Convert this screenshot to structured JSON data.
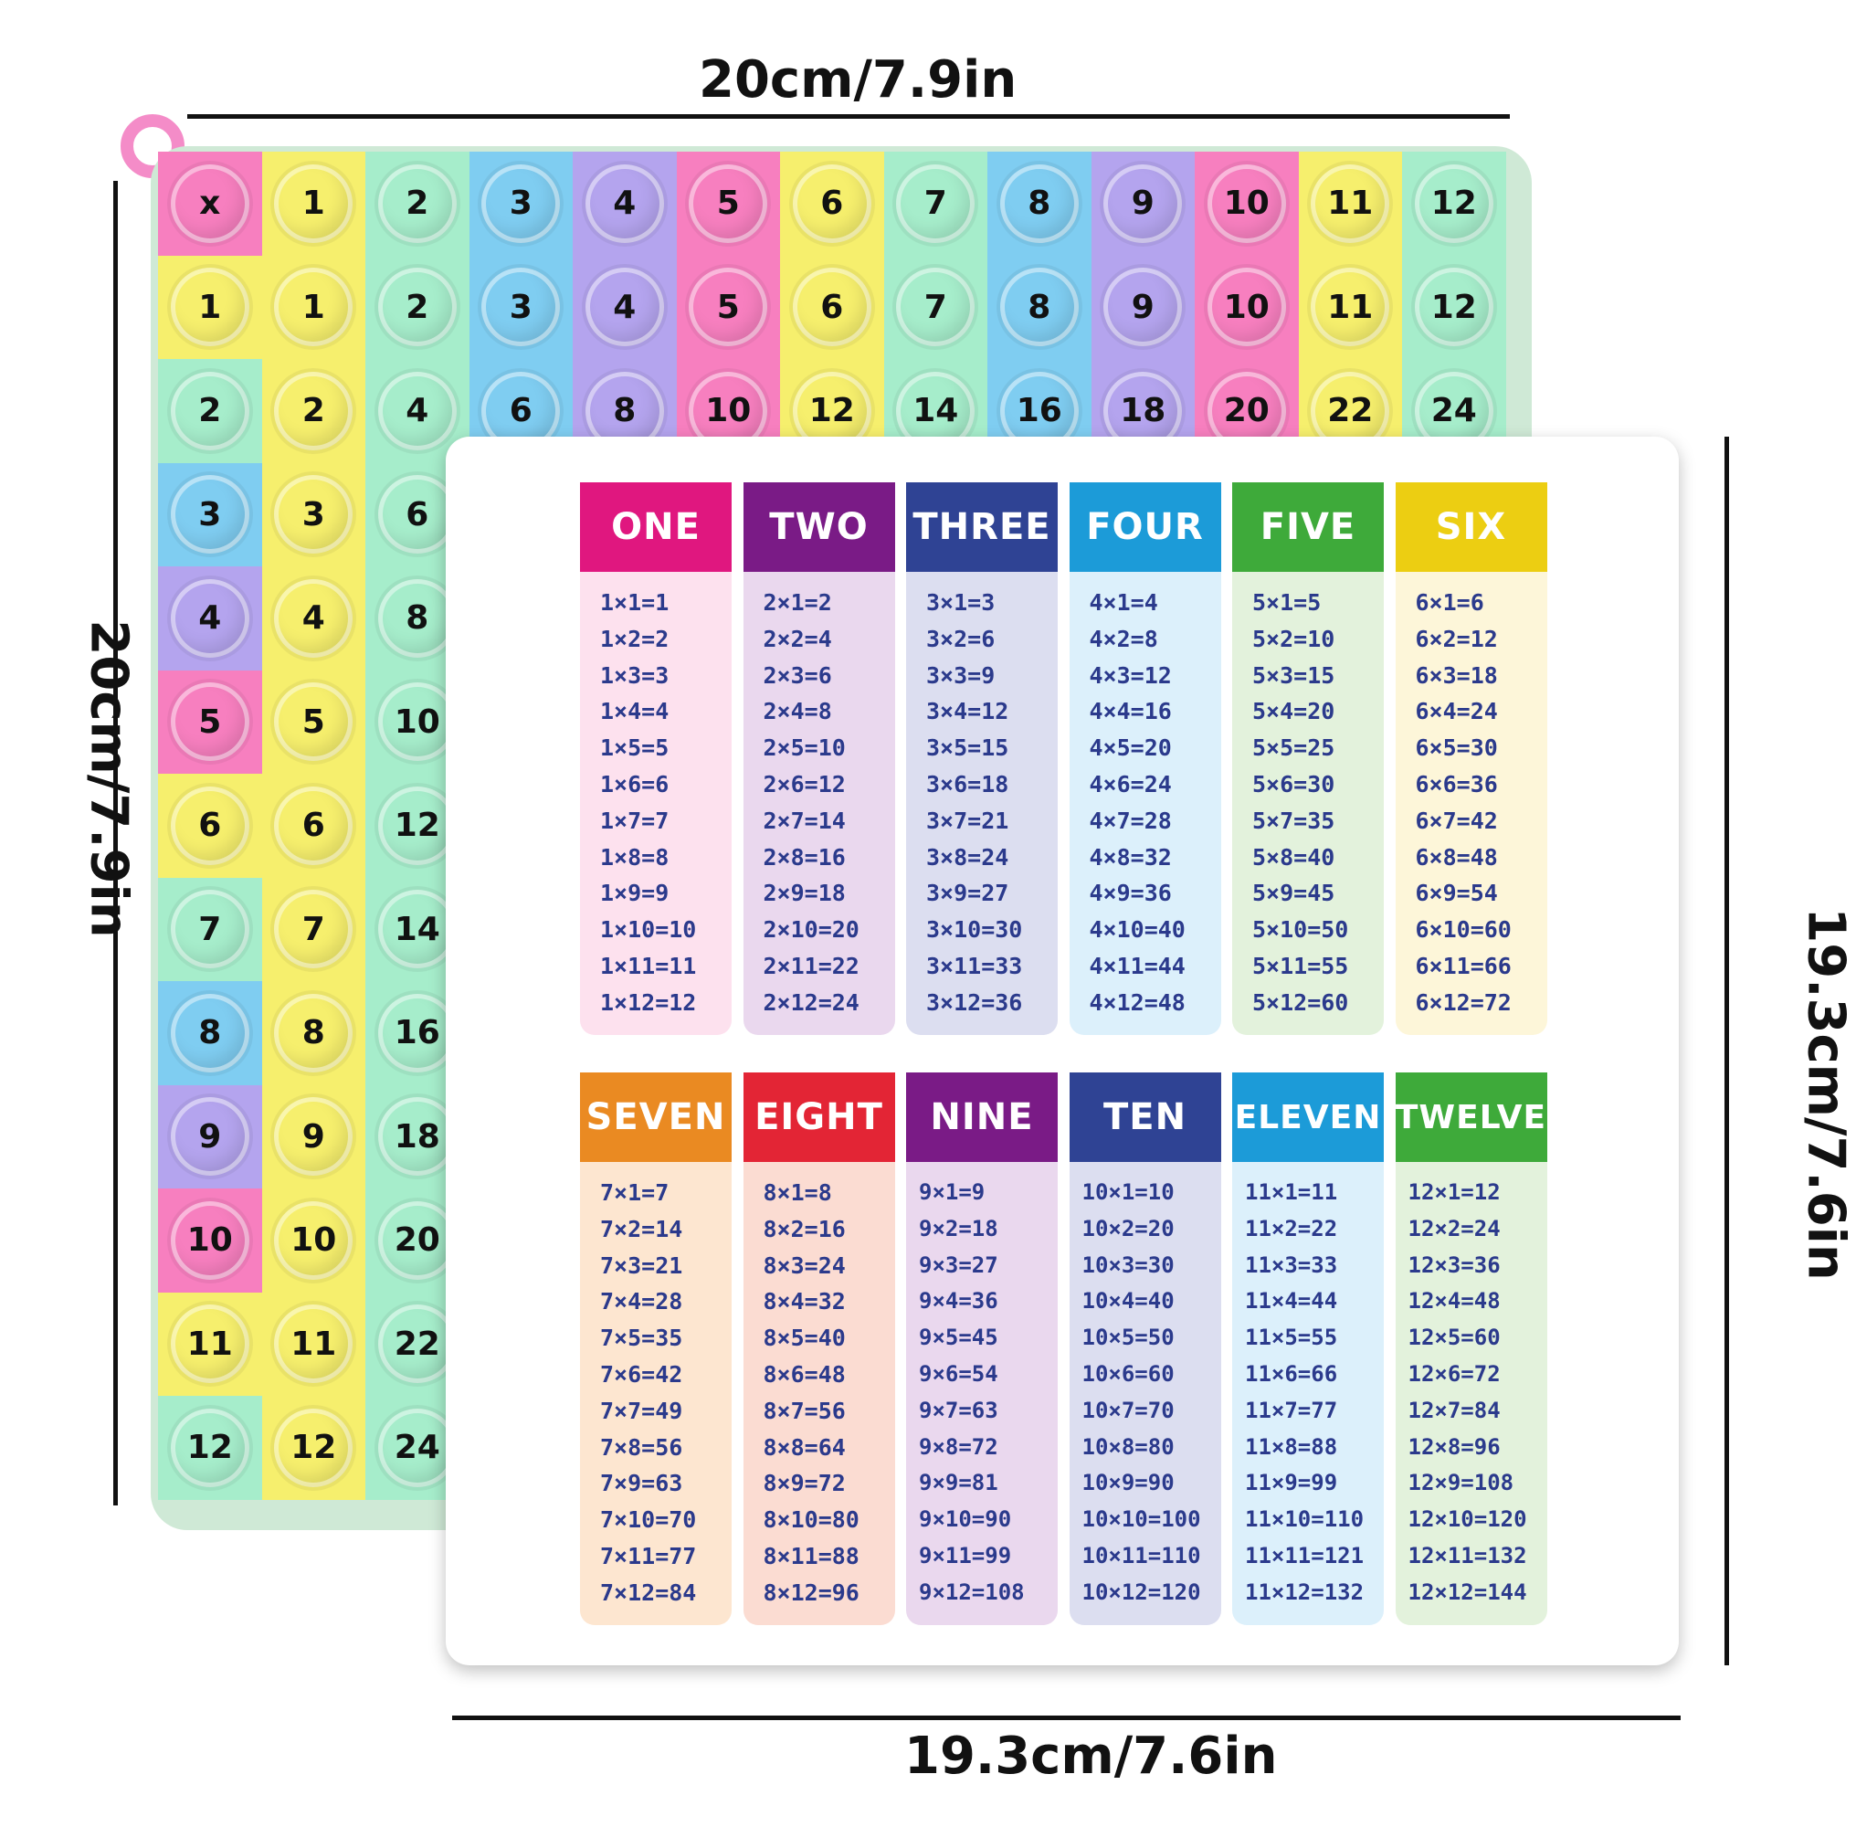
{
  "dimensions": {
    "top": "20cm/7.9in",
    "left": "20cm/7.9in",
    "right": "19.3cm/7.6in",
    "bottom": "19.3cm/7.6in"
  },
  "board": {
    "corner": "x",
    "header_numbers": [
      "1",
      "2",
      "3",
      "4",
      "5",
      "6",
      "7",
      "8",
      "9",
      "10",
      "11",
      "12"
    ],
    "row2": [
      "2",
      "4",
      "6",
      "8",
      "10",
      "12",
      "14",
      "16",
      "18",
      "20",
      "22",
      "24"
    ],
    "col_labels": [
      "1",
      "2",
      "3",
      "4",
      "5",
      "6",
      "7",
      "8",
      "9",
      "10",
      "11",
      "12"
    ],
    "col1": [
      "1",
      "2",
      "3",
      "4",
      "5",
      "6",
      "7",
      "8",
      "9",
      "10",
      "11",
      "12"
    ],
    "col2": [
      "2",
      "4",
      "6",
      "8",
      "10",
      "12",
      "14",
      "16",
      "18",
      "20",
      "22",
      "24"
    ]
  },
  "tables": [
    {
      "title": "ONE",
      "color": "#e0177f",
      "tint": "#fde1ee",
      "facts": [
        "1×1=1",
        "1×2=2",
        "1×3=3",
        "1×4=4",
        "1×5=5",
        "1×6=6",
        "1×7=7",
        "1×8=8",
        "1×9=9",
        "1×10=10",
        "1×11=11",
        "1×12=12"
      ]
    },
    {
      "title": "TWO",
      "color": "#7a1b86",
      "tint": "#ead8ee",
      "facts": [
        "2×1=2",
        "2×2=4",
        "2×3=6",
        "2×4=8",
        "2×5=10",
        "2×6=12",
        "2×7=14",
        "2×8=16",
        "2×9=18",
        "2×10=20",
        "2×11=22",
        "2×12=24"
      ]
    },
    {
      "title": "THREE",
      "color": "#2f4394",
      "tint": "#dcdef0",
      "facts": [
        "3×1=3",
        "3×2=6",
        "3×3=9",
        "3×4=12",
        "3×5=15",
        "3×6=18",
        "3×7=21",
        "3×8=24",
        "3×9=27",
        "3×10=30",
        "3×11=33",
        "3×12=36"
      ]
    },
    {
      "title": "FOUR",
      "color": "#1c9bd8",
      "tint": "#dcf0fb",
      "facts": [
        "4×1=4",
        "4×2=8",
        "4×3=12",
        "4×4=16",
        "4×5=20",
        "4×6=24",
        "4×7=28",
        "4×8=32",
        "4×9=36",
        "4×10=40",
        "4×11=44",
        "4×12=48"
      ]
    },
    {
      "title": "FIVE",
      "color": "#3eaa3a",
      "tint": "#e3f2dc",
      "facts": [
        "5×1=5",
        "5×2=10",
        "5×3=15",
        "5×4=20",
        "5×5=25",
        "5×6=30",
        "5×7=35",
        "5×8=40",
        "5×9=45",
        "5×10=50",
        "5×11=55",
        "5×12=60"
      ]
    },
    {
      "title": "SIX",
      "color": "#ecce12",
      "tint": "#fdf6d9",
      "facts": [
        "6×1=6",
        "6×2=12",
        "6×3=18",
        "6×4=24",
        "6×5=30",
        "6×6=36",
        "6×7=42",
        "6×8=48",
        "6×9=54",
        "6×10=60",
        "6×11=66",
        "6×12=72"
      ]
    },
    {
      "title": "SEVEN",
      "color": "#ea8a22",
      "tint": "#fde6d0",
      "facts": [
        "7×1=7",
        "7×2=14",
        "7×3=21",
        "7×4=28",
        "7×5=35",
        "7×6=42",
        "7×7=49",
        "7×8=56",
        "7×9=63",
        "7×10=70",
        "7×11=77",
        "7×12=84"
      ]
    },
    {
      "title": "EIGHT",
      "color": "#e32535",
      "tint": "#fbdcd2",
      "facts": [
        "8×1=8",
        "8×2=16",
        "8×3=24",
        "8×4=32",
        "8×5=40",
        "8×6=48",
        "8×7=56",
        "8×8=64",
        "8×9=72",
        "8×10=80",
        "8×11=88",
        "8×12=96"
      ]
    },
    {
      "title": "NINE",
      "color": "#7a1b86",
      "tint": "#ead8ee",
      "facts": [
        "9×1=9",
        "9×2=18",
        "9×3=27",
        "9×4=36",
        "9×5=45",
        "9×6=54",
        "9×7=63",
        "9×8=72",
        "9×9=81",
        "9×10=90",
        "9×11=99",
        "9×12=108"
      ]
    },
    {
      "title": "TEN",
      "color": "#2f4394",
      "tint": "#dcdef0",
      "facts": [
        "10×1=10",
        "10×2=20",
        "10×3=30",
        "10×4=40",
        "10×5=50",
        "10×6=60",
        "10×7=70",
        "10×8=80",
        "10×9=90",
        "10×10=100",
        "10×11=110",
        "10×12=120"
      ]
    },
    {
      "title": "ELEVEN",
      "color": "#1c9bd8",
      "tint": "#dcf0fb",
      "facts": [
        "11×1=11",
        "11×2=22",
        "11×3=33",
        "11×4=44",
        "11×5=55",
        "11×6=66",
        "11×7=77",
        "11×8=88",
        "11×9=99",
        "11×10=110",
        "11×11=121",
        "11×12=132"
      ]
    },
    {
      "title": "TWELVE",
      "color": "#3eaa3a",
      "tint": "#e3f2dc",
      "facts": [
        "12×1=12",
        "12×2=24",
        "12×3=36",
        "12×4=48",
        "12×5=60",
        "12×6=72",
        "12×7=84",
        "12×8=96",
        "12×9=108",
        "12×10=120",
        "12×11=132",
        "12×12=144"
      ]
    }
  ]
}
